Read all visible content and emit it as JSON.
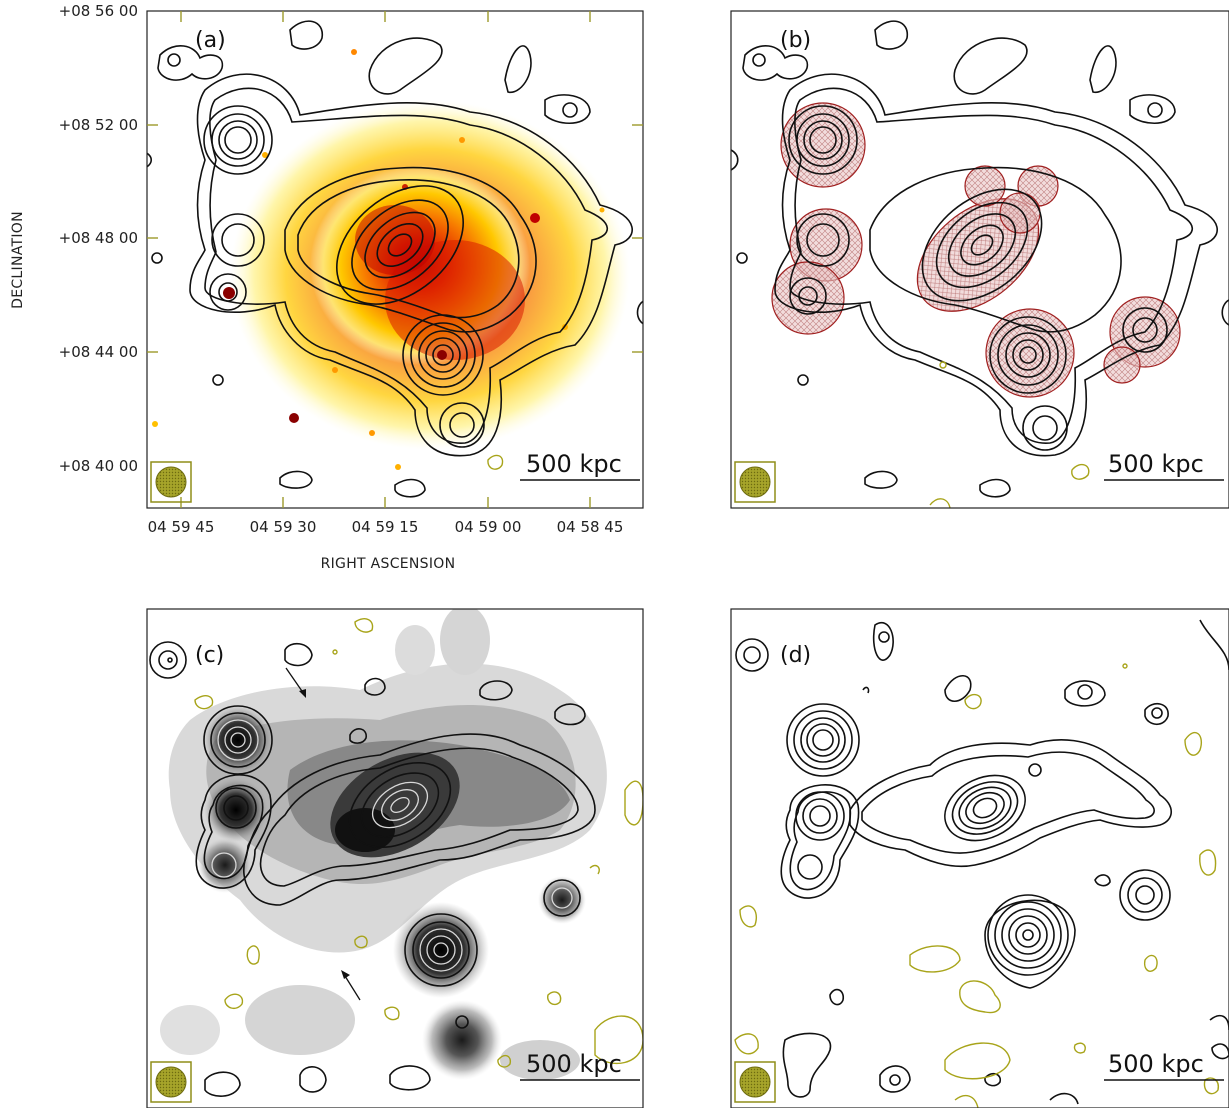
{
  "figure": {
    "y_axis_title": "DECLINATION",
    "x_axis_title": "RIGHT ASCENSION",
    "y_ticks": [
      "+08 56 00",
      "+08 52 00",
      "+08 48 00",
      "+08 44 00",
      "+08 40 00"
    ],
    "x_ticks": [
      "04 59 45",
      "04 59 30",
      "04 59 15",
      "04 59 00",
      "04 58 45"
    ],
    "scale_bar_label": "500 kpc"
  },
  "panels": [
    {
      "label": "(a)",
      "background": "X-ray (heat)"
    },
    {
      "label": "(b)",
      "background": "none"
    },
    {
      "label": "(c)",
      "background": "radio (grey)"
    },
    {
      "label": "(d)",
      "background": "none"
    }
  ],
  "colors": {
    "contour": "#111111",
    "negative_contour": "#a8a41a",
    "beam_fill": "#a6a42a",
    "source_mask": "#b03030"
  }
}
